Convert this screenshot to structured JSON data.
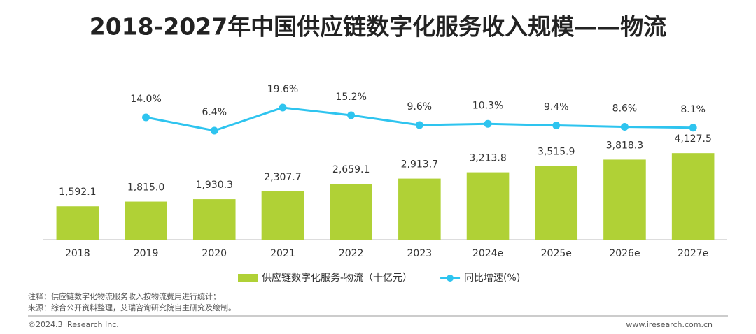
{
  "chart_data": {
    "type": "combo",
    "title": "2018-2027年中国供应链数字化服务收入规模——物流",
    "categories": [
      "2018",
      "2019",
      "2020",
      "2021",
      "2022",
      "2023",
      "2024e",
      "2025e",
      "2026e",
      "2027e"
    ],
    "series": [
      {
        "name": "供应链数字化服务-物流（十亿元）",
        "type": "bar",
        "color": "#b0d136",
        "values": [
          1592.1,
          1815.0,
          1930.3,
          2307.7,
          2659.1,
          2913.7,
          3213.8,
          3515.9,
          3818.3,
          4127.5
        ],
        "value_labels": [
          "1,592.1",
          "1,815.0",
          "1,930.3",
          "2,307.7",
          "2,659.1",
          "2,913.7",
          "3,213.8",
          "3,515.9",
          "3,818.3",
          "4,127.5"
        ]
      },
      {
        "name": "同比增速(%)",
        "type": "line",
        "axis": "y2",
        "color": "#2ec4ef",
        "values": [
          null,
          14.0,
          6.4,
          19.6,
          15.2,
          9.6,
          10.3,
          9.4,
          8.6,
          8.1
        ],
        "value_labels": [
          null,
          "14.0%",
          "6.4%",
          "19.6%",
          "15.2%",
          "9.6%",
          "10.3%",
          "9.4%",
          "8.6%",
          "8.1%"
        ]
      }
    ],
    "ylim": [
      0,
      8000
    ],
    "y2lim": [
      -56,
      40
    ],
    "notes": [
      "注释：供应链数字化物流服务收入按物流费用进行统计；",
      "来源：综合公开资料整理，艾瑞咨询研究院自主研究及绘制。"
    ],
    "copyright": "©2024.3 iResearch Inc.",
    "website": "www.iresearch.com.cn"
  }
}
